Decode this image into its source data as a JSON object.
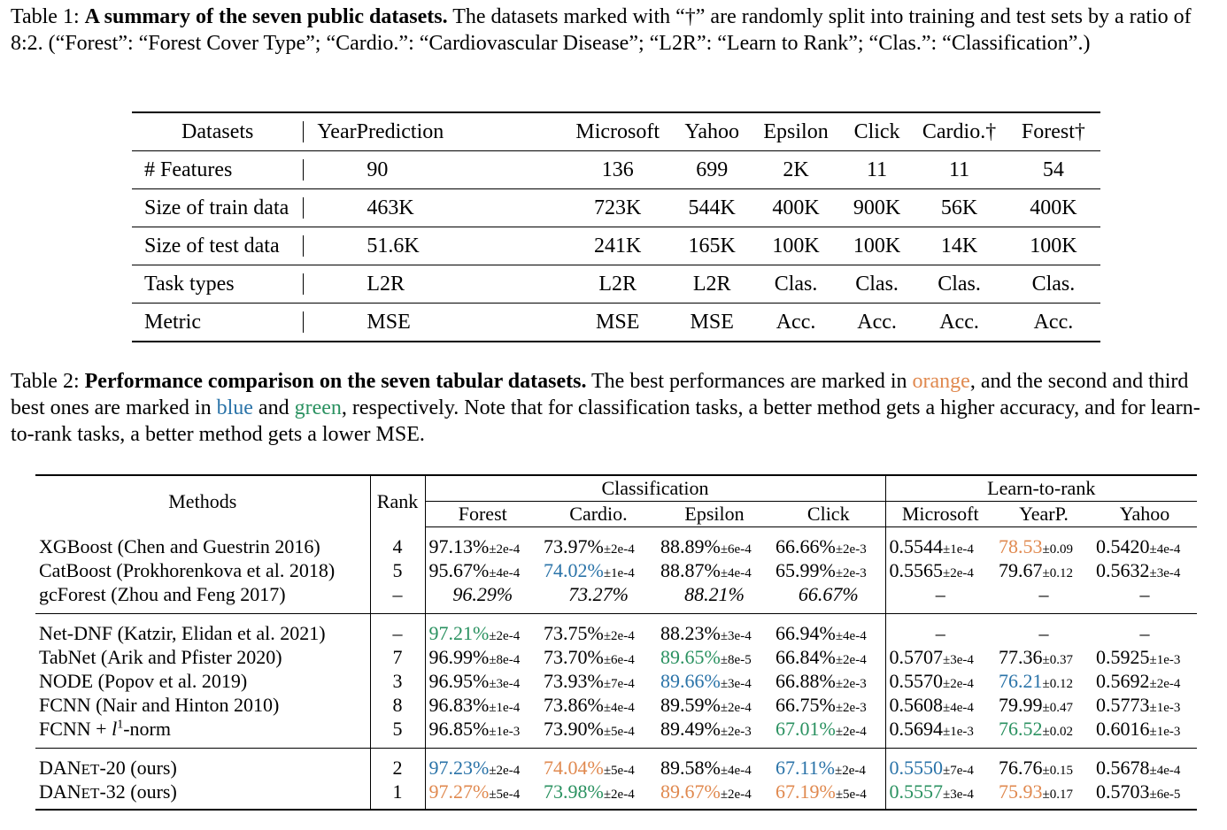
{
  "table1": {
    "label": "Table 1:",
    "title": "A summary of the seven public datasets.",
    "caption_rest": " The datasets marked with “†” are randomly split into training and test sets by a ratio of 8:2. (“Forest”: “Forest Cover Type”; “Cardio.”: “Cardiovascular Disease”; “L2R”: “Learn to Rank”; “Clas.”: “Classification”.)",
    "header": [
      "Datasets",
      "YearPrediction",
      "Microsoft",
      "Yahoo",
      "Epsilon",
      "Click",
      "Cardio.†",
      "Forest†"
    ],
    "rows": [
      [
        "# Features",
        "90",
        "136",
        "699",
        "2K",
        "11",
        "11",
        "54"
      ],
      [
        "Size of train data",
        "463K",
        "723K",
        "544K",
        "400K",
        "900K",
        "56K",
        "400K"
      ],
      [
        "Size of test data",
        "51.6K",
        "241K",
        "165K",
        "100K",
        "100K",
        "14K",
        "100K"
      ],
      [
        "Task types",
        "L2R",
        "L2R",
        "L2R",
        "Clas.",
        "Clas.",
        "Clas.",
        "Clas."
      ],
      [
        "Metric",
        "MSE",
        "MSE",
        "MSE",
        "Acc.",
        "Acc.",
        "Acc.",
        "Acc."
      ]
    ]
  },
  "table2": {
    "label": "Table 2:",
    "title": "Performance comparison on the seven tabular datasets.",
    "caption_a": " The best performances are marked in ",
    "orange_word": "orange",
    "caption_b": ", and the second and third best ones are marked in ",
    "blue_word": "blue",
    "caption_c": " and ",
    "green_word": "green",
    "caption_d": ", respectively. Note that for classification tasks, a better method gets a higher accuracy, and for learn-to-rank tasks, a better method gets a lower MSE.",
    "header": {
      "methods": "Methods",
      "rank": "Rank",
      "classification": "Classification",
      "l2r": "Learn-to-rank",
      "cols": [
        "Forest",
        "Cardio.",
        "Epsilon",
        "Click",
        "Microsoft",
        "YearP.",
        "Yahoo"
      ]
    },
    "rows": [
      [
        "XGBoost (Chen and Guestrin 2016)",
        "4",
        "97.13%",
        "±2e-4",
        "73.97%",
        "±2e-4",
        "88.89%",
        "±6e-4",
        "66.66%",
        "±2e-3",
        "0.5544",
        "±1e-4",
        "78.53",
        "±0.09",
        "0.5420",
        "±4e-4"
      ],
      [
        "CatBoost (Prokhorenkova et al. 2018)",
        "5",
        "95.67%",
        "±4e-4",
        "74.02%",
        "±1e-4",
        "88.87%",
        "±4e-4",
        "65.99%",
        "±2e-3",
        "0.5565",
        "±2e-4",
        "79.67",
        "±0.12",
        "0.5632",
        "±3e-4"
      ],
      [
        "gcForest (Zhou and Feng 2017)",
        "–",
        "96.29%",
        "",
        "73.27%",
        "",
        "88.21%",
        "",
        "66.67%",
        "",
        "–",
        "",
        "–",
        "",
        "–",
        ""
      ],
      [
        "Net-DNF (Katzir, Elidan et al. 2021)",
        "–",
        "97.21%",
        "±2e-4",
        "73.75%",
        "±2e-4",
        "88.23%",
        "±3e-4",
        "66.94%",
        "±4e-4",
        "–",
        "",
        "–",
        "",
        "–",
        ""
      ],
      [
        "TabNet (Arik and Pfister 2020)",
        "7",
        "96.99%",
        "±8e-4",
        "73.70%",
        "±6e-4",
        "89.65%",
        "±8e-5",
        "66.84%",
        "±2e-4",
        "0.5707",
        "±3e-4",
        "77.36",
        "±0.37",
        "0.5925",
        "±1e-3"
      ],
      [
        "NODE (Popov et al. 2019)",
        "3",
        "96.95%",
        "±3e-4",
        "73.93%",
        "±7e-4",
        "89.66%",
        "±3e-4",
        "66.88%",
        "±2e-3",
        "0.5570",
        "±2e-4",
        "76.21",
        "±0.12",
        "0.5692",
        "±2e-4"
      ],
      [
        "FCNN (Nair and Hinton 2010)",
        "8",
        "96.83%",
        "±1e-4",
        "73.86%",
        "±4e-4",
        "89.59%",
        "±2e-4",
        "66.75%",
        "±2e-3",
        "0.5608",
        "±4e-4",
        "79.99",
        "±0.47",
        "0.5773",
        "±1e-3"
      ],
      [
        "FCNN + l1-norm",
        "5",
        "96.85%",
        "±1e-3",
        "73.90%",
        "±5e-4",
        "89.49%",
        "±2e-3",
        "67.01%",
        "±2e-4",
        "0.5694",
        "±1e-3",
        "76.52",
        "±0.02",
        "0.6016",
        "±1e-3"
      ],
      [
        "DANet-20 (ours)",
        "2",
        "97.23%",
        "±2e-4",
        "74.04%",
        "±5e-4",
        "89.58%",
        "±4e-4",
        "67.11%",
        "±2e-4",
        "0.5550",
        "±7e-4",
        "76.76",
        "±0.15",
        "0.5678",
        "±4e-4"
      ],
      [
        "DANet-32 (ours)",
        "1",
        "97.27%",
        "±5e-4",
        "73.98%",
        "±2e-4",
        "89.67%",
        "±2e-4",
        "67.19%",
        "±5e-4",
        "0.5557",
        "±3e-4",
        "75.93",
        "±0.17",
        "0.5703",
        "±6e-5"
      ]
    ],
    "highlight_colors": {
      "orange": "#e0894f",
      "blue": "#2a73a8",
      "green": "#2a9160"
    },
    "highlights": {
      "0": {
        "5": "orange",
        "7": "orange"
      },
      "1": {
        "1": "blue",
        "7": "blue"
      },
      "3": {
        "0": "green"
      },
      "4": {
        "2": "green"
      },
      "5": {
        "2": "blue",
        "5": "blue"
      },
      "7": {
        "3": "green",
        "5": "green"
      },
      "8": {
        "0": "blue",
        "1": "orange",
        "3": "blue",
        "4": "blue",
        "7": "green"
      },
      "9": {
        "0": "orange",
        "1": "green",
        "2": "orange",
        "3": "orange",
        "4": "green",
        "5": "orange"
      }
    }
  }
}
